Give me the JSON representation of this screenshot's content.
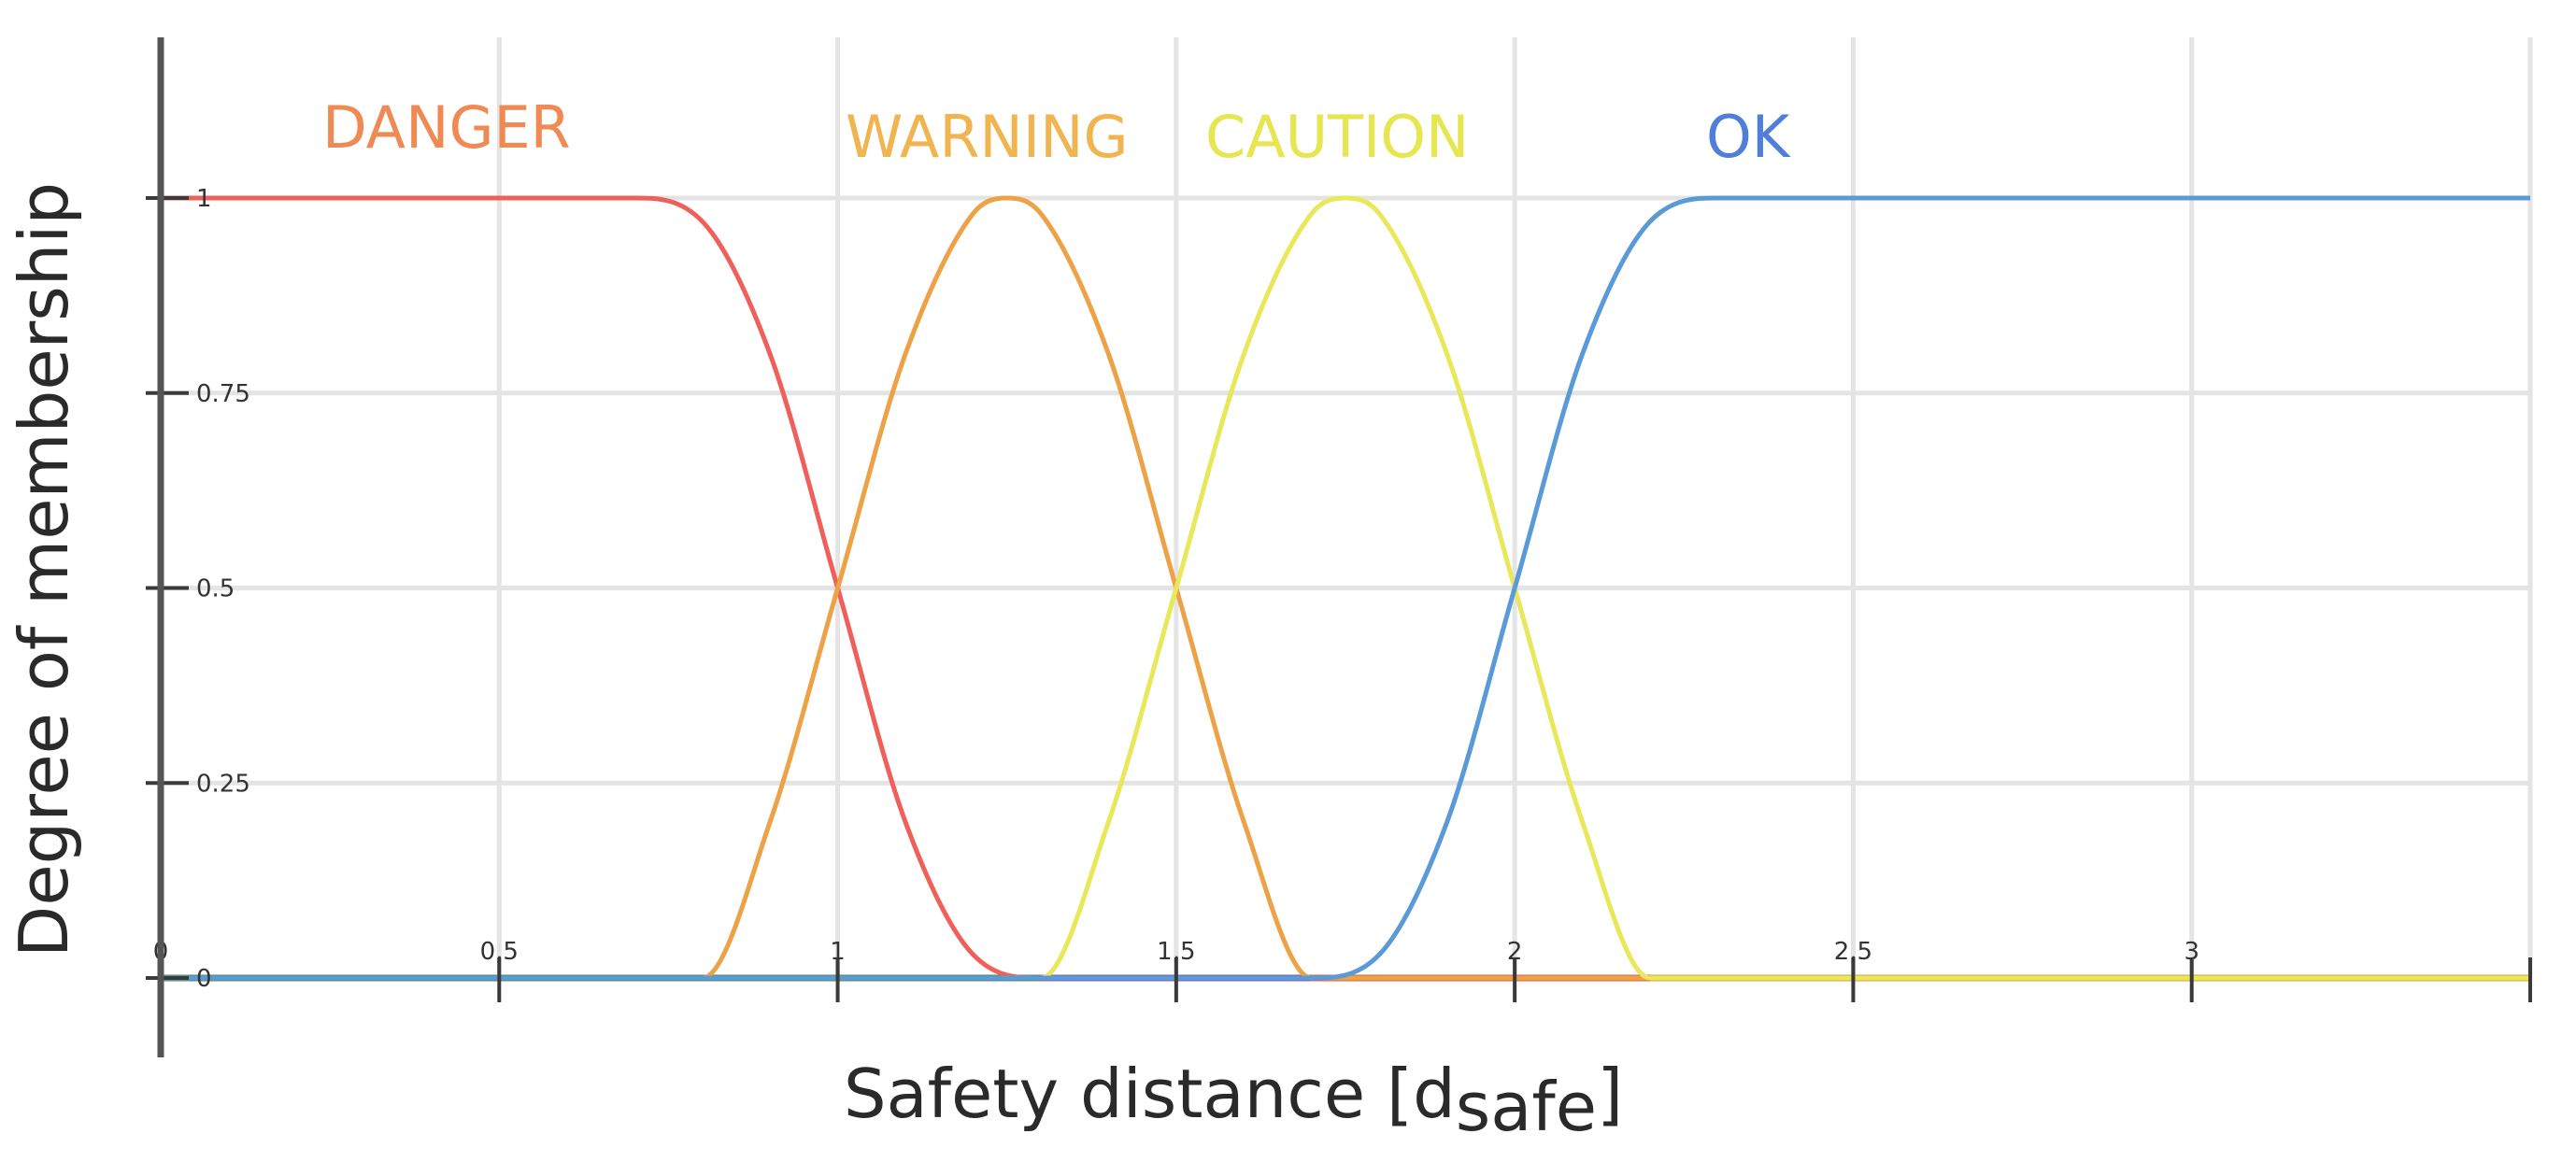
{
  "chart_data": {
    "type": "line",
    "xlabel": "Safety distance [d",
    "xlabel_sub": "safe",
    "xlabel_close": "]",
    "ylabel": "Degree of membership",
    "xlim": [
      0,
      3.5
    ],
    "ylim": [
      0,
      1
    ],
    "grid": true,
    "x_ticks": [
      {
        "value": 0,
        "label": "0"
      },
      {
        "value": 0.5,
        "label": "0,5"
      },
      {
        "value": 1,
        "label": "1"
      },
      {
        "value": 1.5,
        "label": "1,5"
      },
      {
        "value": 2,
        "label": "2"
      },
      {
        "value": 2.5,
        "label": "2,5"
      },
      {
        "value": 3,
        "label": "3"
      },
      {
        "value": 3.5,
        "label": ""
      }
    ],
    "y_ticks": [
      {
        "value": 0,
        "label": "0"
      },
      {
        "value": 0.25,
        "label": "0.25"
      },
      {
        "value": 0.5,
        "label": "0.5"
      },
      {
        "value": 0.75,
        "label": "0.75"
      },
      {
        "value": 1,
        "label": "1"
      }
    ],
    "series": [
      {
        "name": "DANGER",
        "color": "#f0605a",
        "x": [
          0,
          0.7,
          0.8,
          0.9,
          1.0,
          1.1,
          1.2,
          1.3,
          3.5
        ],
        "y": [
          1,
          1,
          0.97,
          0.8,
          0.5,
          0.2,
          0.03,
          0,
          0
        ]
      },
      {
        "name": "WARNING",
        "color": "#eea248",
        "x": [
          0,
          0.8,
          0.9,
          1.0,
          1.1,
          1.2,
          1.25,
          1.3,
          1.4,
          1.5,
          1.6,
          1.7,
          3.5
        ],
        "y": [
          0,
          0,
          0.2,
          0.5,
          0.8,
          0.98,
          1,
          0.98,
          0.8,
          0.5,
          0.2,
          0,
          0
        ]
      },
      {
        "name": "CAUTION",
        "color": "#e8e85a",
        "x": [
          0,
          1.3,
          1.4,
          1.5,
          1.6,
          1.7,
          1.75,
          1.8,
          1.9,
          2.0,
          2.1,
          2.2,
          3.5
        ],
        "y": [
          0,
          0,
          0.2,
          0.5,
          0.8,
          0.98,
          1,
          0.98,
          0.8,
          0.5,
          0.2,
          0,
          0
        ]
      },
      {
        "name": "OK",
        "color": "#5a9ad8",
        "x": [
          0,
          1.7,
          1.8,
          1.9,
          2.0,
          2.1,
          2.2,
          2.3,
          3.5
        ],
        "y": [
          0,
          0,
          0.03,
          0.2,
          0.5,
          0.8,
          0.97,
          1,
          1
        ]
      }
    ],
    "baseline_segments": [
      {
        "x": [
          0,
          1.3
        ],
        "color": "#4e8a62"
      },
      {
        "x": [
          1.3,
          1.7
        ],
        "color": "#8a5aa8"
      },
      {
        "x": [
          1.7,
          2.2
        ],
        "color": "#d8603a"
      },
      {
        "x": [
          2.2,
          3.5
        ],
        "color": "#d8a23a"
      }
    ],
    "label_colors": {
      "DANGER": "#f08a55",
      "WARNING": "#f0b550",
      "CAUTION": "#e6e650",
      "OK": "#4f7fd8"
    }
  }
}
